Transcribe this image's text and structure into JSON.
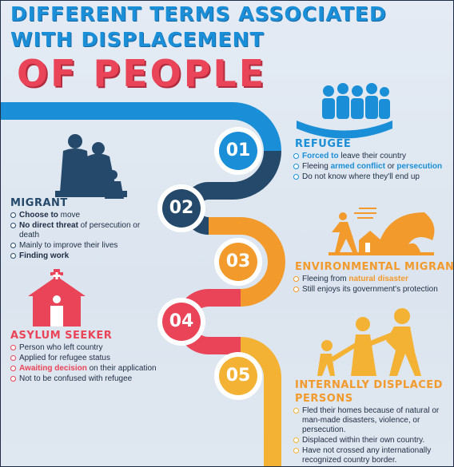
{
  "title": {
    "line1": "DIFFERENT TERMS ASSOCIATED",
    "line2": "WITH DISPLACEMENT",
    "line3": "OF PEOPLE"
  },
  "colors": {
    "blue": "#1a8fd8",
    "navy": "#24496b",
    "orange": "#f29a2c",
    "red": "#ea4458",
    "yellow": "#f3b234"
  },
  "steps": [
    {
      "number": "01",
      "heading": "REFUGEE",
      "icon": "refugee-group-icon",
      "items": [
        {
          "hl": "Forced to",
          "rest": " leave their country"
        },
        {
          "pre": "Fleeing ",
          "hl": "armed conflict",
          "mid": " or ",
          "hl2": "persecution"
        },
        {
          "rest": "Do not know where they'll end up"
        }
      ]
    },
    {
      "number": "02",
      "heading": "MIGRANT",
      "icon": "migrant-family-icon",
      "items": [
        {
          "hl": "Choose to",
          "rest": " move"
        },
        {
          "hl": "No direct threat",
          "rest": " of persecution or death"
        },
        {
          "rest": "Mainly to improve their lives"
        },
        {
          "hl": "Finding work"
        }
      ]
    },
    {
      "number": "03",
      "heading": "ENVIRONMENTAL MIGRANT",
      "icon": "natural-disaster-icon",
      "items": [
        {
          "pre": "Fleeing from ",
          "hl": "natural disaster"
        },
        {
          "rest": "Still enjoys its government's protection"
        }
      ]
    },
    {
      "number": "04",
      "heading": "ASYLUM SEEKER",
      "icon": "shelter-building-icon",
      "items": [
        {
          "rest": "Person who left country"
        },
        {
          "rest": "Applied for refugee status"
        },
        {
          "hl": "Awaiting decision",
          "rest": " on their application"
        },
        {
          "rest": "Not to be confused with refugee"
        }
      ]
    },
    {
      "number": "05",
      "heading": "INTERNALLY DISPLACED PERSONS",
      "heading_line1": "INTERNALLY DISPLACED",
      "heading_line2": "PERSONS",
      "icon": "walking-family-icon",
      "items": [
        {
          "rest": "Fled their homes because of natural or man-made disasters, violence, or persecution."
        },
        {
          "rest": "Displaced within their own country."
        },
        {
          "rest": "Have not crossed any internationally recognized country border."
        }
      ]
    }
  ]
}
